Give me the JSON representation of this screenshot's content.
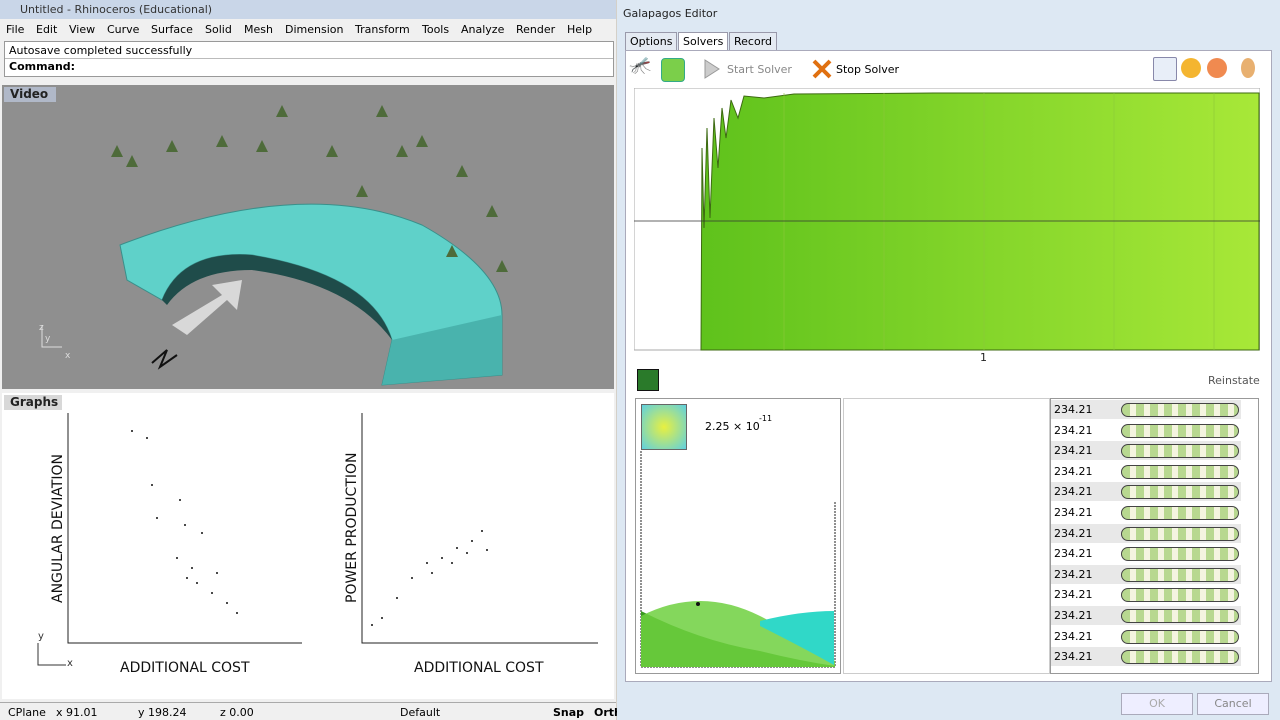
{
  "rhino": {
    "title": "Untitled - Rhinoceros (Educational)",
    "menu": [
      "File",
      "Edit",
      "View",
      "Curve",
      "Surface",
      "Solid",
      "Mesh",
      "Dimension",
      "Transform",
      "Tools",
      "Analyze",
      "Render",
      "Help"
    ],
    "message": "Autosave completed successfully",
    "command": "Command:",
    "viewport_top": {
      "title": "Video",
      "axes": [
        "z",
        "y",
        "x"
      ]
    },
    "viewport_bottom": {
      "title": "Graphs",
      "axes": [
        "y",
        "x"
      ],
      "graph1": {
        "y_label": "ANGULAR DEVIATION",
        "x_label": "ADDITIONAL COST"
      },
      "graph2": {
        "y_label": "POWER PRODUCTION",
        "x_label": "ADDITIONAL COST"
      }
    },
    "status": [
      "CPlane",
      "x 91.01",
      "y 198.24",
      "z 0.00",
      "Default",
      "Snap",
      "Orth"
    ]
  },
  "galapagos": {
    "title": "Galapagos Editor",
    "tabs": [
      "Options",
      "Solvers",
      "Record"
    ],
    "start": "Start Solver",
    "stop": "Stop Solver",
    "generation_label": "1",
    "reinstate": "Reinstate",
    "fitness_base": "2.25 × 10",
    "fitness_exp": "-11",
    "genomes": [
      "234.21",
      "234.21",
      "234.21",
      "234.21",
      "234.21",
      "234.21",
      "234.21",
      "234.21",
      "234.21",
      "234.21",
      "234.21",
      "234.21",
      "234.21"
    ],
    "ok": "OK",
    "cancel": "Cancel"
  }
}
